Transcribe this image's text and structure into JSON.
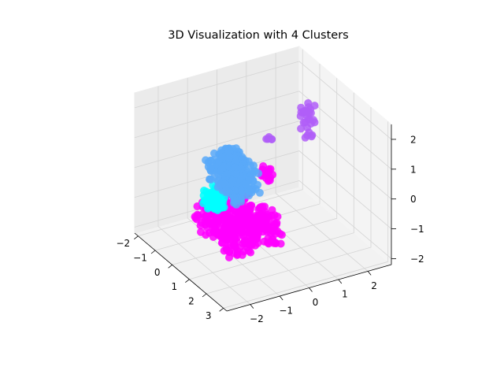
{
  "chart_data": {
    "type": "scatter",
    "projection": "3d",
    "title": "3D Visualization with 4 Clusters",
    "xlabel": "",
    "ylabel": "",
    "zlabel": "",
    "x_ticks": [
      "−2",
      "−1",
      "0",
      "1",
      "2",
      "3"
    ],
    "y_ticks": [
      "−2",
      "−1",
      "0",
      "1",
      "2"
    ],
    "z_ticks": [
      "−2",
      "−1",
      "0",
      "1",
      "2"
    ],
    "xlim": [
      -2.2,
      3.2
    ],
    "ylim": [
      -2.8,
      2.8
    ],
    "zlim": [
      -2.2,
      2.5
    ],
    "grid": true,
    "legend": "none",
    "series": [
      {
        "color": "#59a9f9",
        "blobs": [
          {
            "x": [
              1.3,
              2.5
            ],
            "y": [
              -2.1,
              -1.7
            ],
            "z": [
              1.6,
              2.2
            ],
            "n": 120
          },
          {
            "x": [
              0.5,
              2.2
            ],
            "y": [
              -2.0,
              -1.0
            ],
            "z": [
              0.7,
              1.6
            ],
            "n": 180
          },
          {
            "x": [
              0.4,
              1.4
            ],
            "y": [
              -1.5,
              -1.1
            ],
            "z": [
              0.1,
              0.6
            ],
            "n": 60
          }
        ]
      },
      {
        "color": "#00ffff",
        "blobs": [
          {
            "x": [
              0.0,
              0.6
            ],
            "y": [
              -1.8,
              -1.3
            ],
            "z": [
              -0.5,
              0.1
            ],
            "n": 80
          }
        ]
      },
      {
        "color": "#ff00ff",
        "blobs": [
          {
            "x": [
              -0.8,
              1.6
            ],
            "y": [
              -1.7,
              0.1
            ],
            "z": [
              -1.6,
              -0.7
            ],
            "n": 420
          },
          {
            "x": [
              -0.2,
              0.5
            ],
            "y": [
              0.2,
              0.4
            ],
            "z": [
              -0.2,
              0.3
            ],
            "n": 20
          }
        ]
      },
      {
        "color": "#b05ef8",
        "blobs": [
          {
            "x": [
              -0.1,
              0.3
            ],
            "y": [
              1.6,
              1.9
            ],
            "z": [
              0.9,
              2.0
            ],
            "n": 30
          },
          {
            "x": [
              -0.4,
              -0.3
            ],
            "y": [
              0.6,
              0.8
            ],
            "z": [
              0.8,
              1.0
            ],
            "n": 6
          }
        ]
      }
    ]
  }
}
